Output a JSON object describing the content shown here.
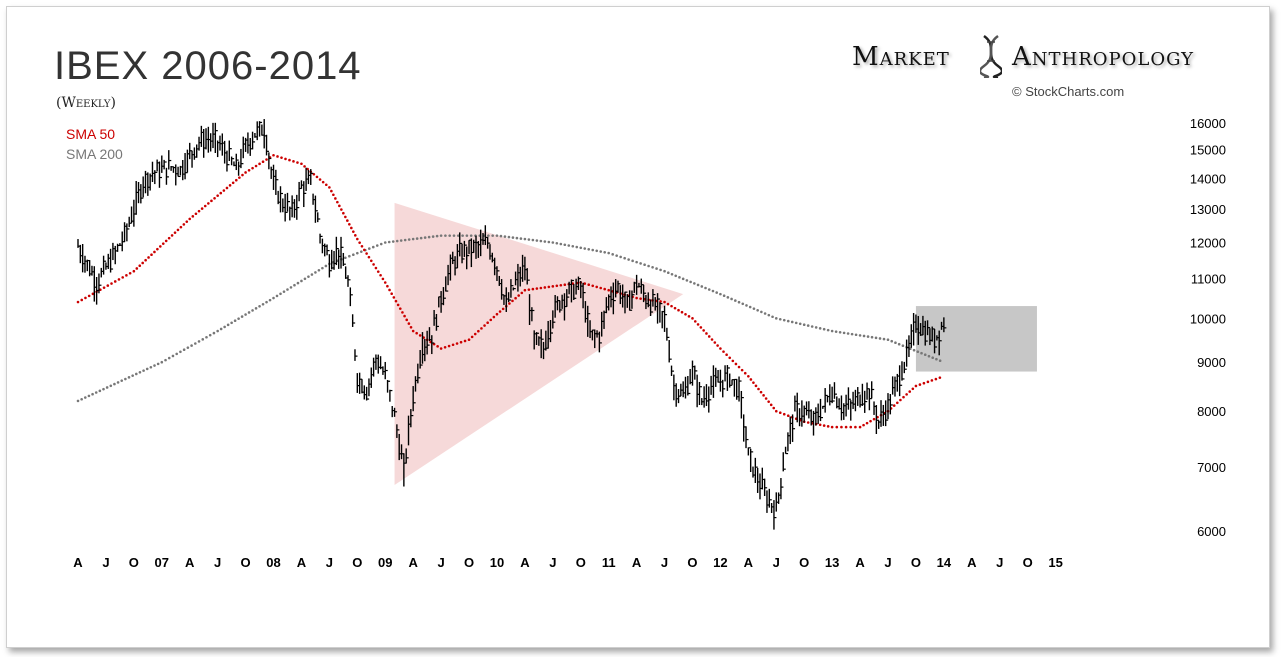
{
  "header": {
    "title": "IBEX 2006-2014",
    "subtitle": "(Weekly)"
  },
  "legend": [
    {
      "label": "SMA 50",
      "color": "#cc0000"
    },
    {
      "label": "SMA 200",
      "color": "#777777"
    }
  ],
  "brand": {
    "word1": "Market",
    "word2": "Anthropology",
    "copyright": "© StockCharts.com",
    "icon": "dna-helix-icon"
  },
  "chart_data": {
    "type": "line",
    "title": "IBEX 2006-2014",
    "subtitle": "(Weekly)",
    "xlabel": "",
    "ylabel": "",
    "y_scale": "log",
    "ylim": [
      5800,
      16500
    ],
    "y_ticks": [
      6000,
      7000,
      8000,
      9000,
      10000,
      11000,
      12000,
      13000,
      14000,
      15000,
      16000
    ],
    "y_tick_labels": [
      "6000",
      "7000",
      "8000",
      "9000",
      "10000",
      "11000",
      "12000",
      "13000",
      "14000",
      "15000",
      "16000"
    ],
    "x_range": [
      "2006-04",
      "2015-12"
    ],
    "x_ticks": [
      {
        "date": "2006-04",
        "label": "A"
      },
      {
        "date": "2006-07",
        "label": "J"
      },
      {
        "date": "2006-10",
        "label": "O"
      },
      {
        "date": "2007-01",
        "label": "07"
      },
      {
        "date": "2007-04",
        "label": "A"
      },
      {
        "date": "2007-07",
        "label": "J"
      },
      {
        "date": "2007-10",
        "label": "O"
      },
      {
        "date": "2008-01",
        "label": "08"
      },
      {
        "date": "2008-04",
        "label": "A"
      },
      {
        "date": "2008-07",
        "label": "J"
      },
      {
        "date": "2008-10",
        "label": "O"
      },
      {
        "date": "2009-01",
        "label": "09"
      },
      {
        "date": "2009-04",
        "label": "A"
      },
      {
        "date": "2009-07",
        "label": "J"
      },
      {
        "date": "2009-10",
        "label": "O"
      },
      {
        "date": "2010-01",
        "label": "10"
      },
      {
        "date": "2010-04",
        "label": "A"
      },
      {
        "date": "2010-07",
        "label": "J"
      },
      {
        "date": "2010-10",
        "label": "O"
      },
      {
        "date": "2011-01",
        "label": "11"
      },
      {
        "date": "2011-04",
        "label": "A"
      },
      {
        "date": "2011-07",
        "label": "J"
      },
      {
        "date": "2011-10",
        "label": "O"
      },
      {
        "date": "2012-01",
        "label": "12"
      },
      {
        "date": "2012-04",
        "label": "A"
      },
      {
        "date": "2012-07",
        "label": "J"
      },
      {
        "date": "2012-10",
        "label": "O"
      },
      {
        "date": "2013-01",
        "label": "13"
      },
      {
        "date": "2013-04",
        "label": "A"
      },
      {
        "date": "2013-07",
        "label": "J"
      },
      {
        "date": "2013-10",
        "label": "O"
      },
      {
        "date": "2014-01",
        "label": "14"
      },
      {
        "date": "2014-04",
        "label": "A"
      },
      {
        "date": "2014-07",
        "label": "J"
      },
      {
        "date": "2014-10",
        "label": "O"
      },
      {
        "date": "2015-01",
        "label": "15"
      }
    ],
    "series": [
      {
        "name": "IBEX",
        "style": "weekly-hlc-bars",
        "color": "#000000",
        "points": [
          [
            "2006-04",
            11900
          ],
          [
            "2006-05",
            11400
          ],
          [
            "2006-06",
            10900
          ],
          [
            "2006-07",
            11300
          ],
          [
            "2006-08",
            11700
          ],
          [
            "2006-09",
            12200
          ],
          [
            "2006-10",
            13000
          ],
          [
            "2006-11",
            13900
          ],
          [
            "2006-12",
            14200
          ],
          [
            "2007-01",
            14300
          ],
          [
            "2007-02",
            14400
          ],
          [
            "2007-03",
            14300
          ],
          [
            "2007-04",
            14800
          ],
          [
            "2007-05",
            15300
          ],
          [
            "2007-06",
            15400
          ],
          [
            "2007-07",
            15300
          ],
          [
            "2007-08",
            14800
          ],
          [
            "2007-09",
            14300
          ],
          [
            "2007-10",
            15100
          ],
          [
            "2007-11",
            15600
          ],
          [
            "2007-12",
            15800
          ],
          [
            "2008-01",
            13800
          ],
          [
            "2008-02",
            13200
          ],
          [
            "2008-03",
            12900
          ],
          [
            "2008-04",
            13700
          ],
          [
            "2008-05",
            13900
          ],
          [
            "2008-06",
            12200
          ],
          [
            "2008-07",
            11500
          ],
          [
            "2008-08",
            11800
          ],
          [
            "2008-09",
            10900
          ],
          [
            "2008-10",
            8700
          ],
          [
            "2008-11",
            8400
          ],
          [
            "2008-12",
            9100
          ],
          [
            "2009-01",
            8700
          ],
          [
            "2009-02",
            7900
          ],
          [
            "2009-03",
            6900
          ],
          [
            "2009-04",
            8300
          ],
          [
            "2009-05",
            9400
          ],
          [
            "2009-06",
            9600
          ],
          [
            "2009-07",
            10500
          ],
          [
            "2009-08",
            11300
          ],
          [
            "2009-09",
            11700
          ],
          [
            "2009-10",
            11800
          ],
          [
            "2009-11",
            11900
          ],
          [
            "2009-12",
            12000
          ],
          [
            "2010-01",
            11300
          ],
          [
            "2010-02",
            10300
          ],
          [
            "2010-03",
            10900
          ],
          [
            "2010-04",
            11300
          ],
          [
            "2010-05",
            9500
          ],
          [
            "2010-06",
            9300
          ],
          [
            "2010-07",
            10100
          ],
          [
            "2010-08",
            10500
          ],
          [
            "2010-09",
            10700
          ],
          [
            "2010-10",
            10800
          ],
          [
            "2010-11",
            9600
          ],
          [
            "2010-12",
            9600
          ],
          [
            "2011-01",
            10500
          ],
          [
            "2011-02",
            10800
          ],
          [
            "2011-03",
            10300
          ],
          [
            "2011-04",
            10900
          ],
          [
            "2011-05",
            10500
          ],
          [
            "2011-06",
            10300
          ],
          [
            "2011-07",
            10000
          ],
          [
            "2011-08",
            8500
          ],
          [
            "2011-09",
            8300
          ],
          [
            "2011-10",
            8800
          ],
          [
            "2011-11",
            8200
          ],
          [
            "2011-12",
            8500
          ],
          [
            "2012-01",
            8600
          ],
          [
            "2012-02",
            8700
          ],
          [
            "2012-03",
            8400
          ],
          [
            "2012-04",
            7200
          ],
          [
            "2012-05",
            6800
          ],
          [
            "2012-06",
            6500
          ],
          [
            "2012-07",
            6300
          ],
          [
            "2012-08",
            7300
          ],
          [
            "2012-09",
            8000
          ],
          [
            "2012-10",
            8000
          ],
          [
            "2012-11",
            7800
          ],
          [
            "2012-12",
            8100
          ],
          [
            "2013-01",
            8400
          ],
          [
            "2013-02",
            8100
          ],
          [
            "2013-03",
            8100
          ],
          [
            "2013-04",
            8300
          ],
          [
            "2013-05",
            8400
          ],
          [
            "2013-06",
            7800
          ],
          [
            "2013-07",
            8100
          ],
          [
            "2013-08",
            8600
          ],
          [
            "2013-09",
            9100
          ],
          [
            "2013-10",
            9900
          ],
          [
            "2013-11",
            9700
          ],
          [
            "2013-12",
            9500
          ],
          [
            "2014-01",
            9900
          ]
        ]
      },
      {
        "name": "SMA 50",
        "style": "dotted",
        "color": "#cc0000",
        "points": [
          [
            "2006-04",
            10400
          ],
          [
            "2006-10",
            11200
          ],
          [
            "2007-04",
            12700
          ],
          [
            "2007-10",
            14200
          ],
          [
            "2008-01",
            14800
          ],
          [
            "2008-04",
            14500
          ],
          [
            "2008-07",
            13700
          ],
          [
            "2008-10",
            12100
          ],
          [
            "2009-01",
            10900
          ],
          [
            "2009-04",
            9700
          ],
          [
            "2009-07",
            9300
          ],
          [
            "2009-10",
            9500
          ],
          [
            "2010-01",
            10100
          ],
          [
            "2010-04",
            10700
          ],
          [
            "2010-07",
            10800
          ],
          [
            "2010-10",
            10900
          ],
          [
            "2011-01",
            10700
          ],
          [
            "2011-04",
            10500
          ],
          [
            "2011-07",
            10400
          ],
          [
            "2011-10",
            10000
          ],
          [
            "2012-01",
            9300
          ],
          [
            "2012-04",
            8700
          ],
          [
            "2012-07",
            8000
          ],
          [
            "2012-10",
            7800
          ],
          [
            "2013-01",
            7700
          ],
          [
            "2013-04",
            7700
          ],
          [
            "2013-07",
            8000
          ],
          [
            "2013-10",
            8500
          ],
          [
            "2014-01",
            8700
          ]
        ]
      },
      {
        "name": "SMA 200",
        "style": "dotted",
        "color": "#777777",
        "points": [
          [
            "2006-04",
            8200
          ],
          [
            "2007-01",
            9000
          ],
          [
            "2007-07",
            9700
          ],
          [
            "2008-01",
            10500
          ],
          [
            "2008-07",
            11400
          ],
          [
            "2009-01",
            12000
          ],
          [
            "2009-07",
            12200
          ],
          [
            "2010-01",
            12200
          ],
          [
            "2010-07",
            12000
          ],
          [
            "2011-01",
            11700
          ],
          [
            "2011-07",
            11200
          ],
          [
            "2012-01",
            10600
          ],
          [
            "2012-07",
            10000
          ],
          [
            "2013-01",
            9700
          ],
          [
            "2013-07",
            9500
          ],
          [
            "2014-01",
            9000
          ]
        ]
      }
    ],
    "annotations": [
      {
        "kind": "triangle",
        "color": "#f4d2d2",
        "vertices": [
          [
            "2009-02",
            13200
          ],
          [
            "2011-09",
            10600
          ],
          [
            "2009-02",
            6700
          ]
        ]
      },
      {
        "kind": "rectangle",
        "color": "#bdbdbd",
        "x_range": [
          "2013-10",
          "2014-11"
        ],
        "y_range": [
          8800,
          10300
        ]
      }
    ],
    "legend": [
      "SMA 50",
      "SMA 200"
    ],
    "grid": false
  }
}
